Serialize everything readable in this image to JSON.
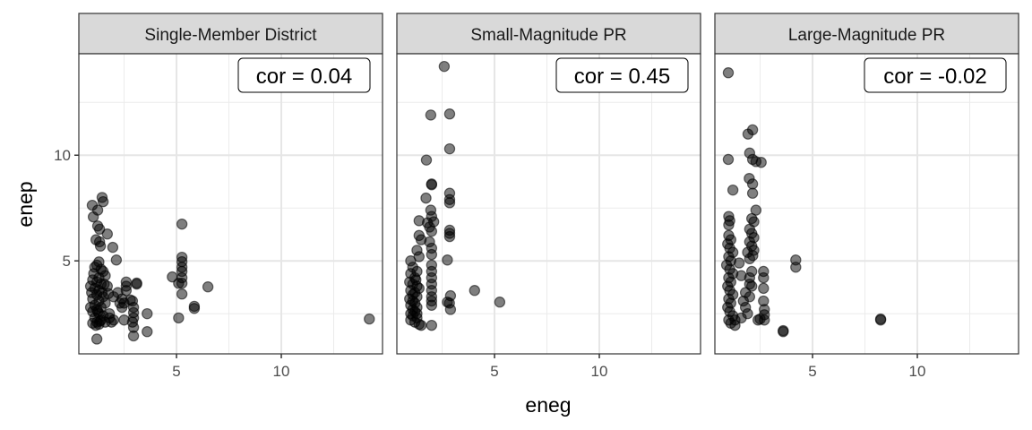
{
  "chart_data": {
    "type": "scatter",
    "xlabel": "eneg",
    "ylabel": "enep",
    "xlim": [
      0.34,
      14.83
    ],
    "ylim": [
      0.6,
      14.8
    ],
    "x_major_ticks": [
      5,
      10
    ],
    "x_minor_ticks": [
      2.5,
      7.5,
      12.5
    ],
    "y_major_ticks": [
      5,
      10
    ],
    "y_minor_ticks": [
      2.5,
      7.5,
      12.5
    ],
    "x_tick_labels": [
      "5",
      "10"
    ],
    "y_tick_labels": [
      "5",
      "10"
    ],
    "grid": true,
    "point_color": "#000000",
    "point_alpha": 0.5,
    "panels": [
      {
        "title": "Single-Member District",
        "annotation": "cor = 0.04",
        "points": [
          [
            1.45,
            8.0
          ],
          [
            1.5,
            7.8
          ],
          [
            0.98,
            7.63
          ],
          [
            1.24,
            7.4
          ],
          [
            1.03,
            7.08
          ],
          [
            1.24,
            6.65
          ],
          [
            1.33,
            6.5
          ],
          [
            1.7,
            6.27
          ],
          [
            1.16,
            6.0
          ],
          [
            1.33,
            5.9
          ],
          [
            1.37,
            5.7
          ],
          [
            1.96,
            5.64
          ],
          [
            2.13,
            5.04
          ],
          [
            1.3,
            4.95
          ],
          [
            1.2,
            4.8
          ],
          [
            1.1,
            4.7
          ],
          [
            1.4,
            4.6
          ],
          [
            1.5,
            4.5
          ],
          [
            1.6,
            4.3
          ],
          [
            1.3,
            4.2
          ],
          [
            1.0,
            4.1
          ],
          [
            1.2,
            4.0
          ],
          [
            1.4,
            3.9
          ],
          [
            1.7,
            3.8
          ],
          [
            1.1,
            3.7
          ],
          [
            1.3,
            3.6
          ],
          [
            0.95,
            3.5
          ],
          [
            1.2,
            3.4
          ],
          [
            1.5,
            3.3
          ],
          [
            1.0,
            3.2
          ],
          [
            1.3,
            3.1
          ],
          [
            1.6,
            3.0
          ],
          [
            1.1,
            2.9
          ],
          [
            1.4,
            2.8
          ],
          [
            1.2,
            2.7
          ],
          [
            1.0,
            2.6
          ],
          [
            1.3,
            2.5
          ],
          [
            1.5,
            2.4
          ],
          [
            1.1,
            2.3
          ],
          [
            1.4,
            2.2
          ],
          [
            1.2,
            2.1
          ],
          [
            1.0,
            2.05
          ],
          [
            1.3,
            2.0
          ],
          [
            1.6,
            2.1
          ],
          [
            1.9,
            2.1
          ],
          [
            2.0,
            2.2
          ],
          [
            1.8,
            2.3
          ],
          [
            1.15,
            1.95
          ],
          [
            1.35,
            2.15
          ],
          [
            1.25,
            2.6
          ],
          [
            1.45,
            3.5
          ],
          [
            1.55,
            3.9
          ],
          [
            1.05,
            4.4
          ],
          [
            1.75,
            3.45
          ],
          [
            2.3,
            3.0
          ],
          [
            2.4,
            3.2
          ],
          [
            2.5,
            3.0
          ],
          [
            2.4,
            2.8
          ],
          [
            2.6,
            3.6
          ],
          [
            2.6,
            3.8
          ],
          [
            2.6,
            4.0
          ],
          [
            3.1,
            3.9
          ],
          [
            3.1,
            3.95
          ],
          [
            2.8,
            3.15
          ],
          [
            2.9,
            3.1
          ],
          [
            2.95,
            2.8
          ],
          [
            2.95,
            2.55
          ],
          [
            2.95,
            2.3
          ],
          [
            2.9,
            2.1
          ],
          [
            2.95,
            1.85
          ],
          [
            2.95,
            1.45
          ],
          [
            2.5,
            2.2
          ],
          [
            3.6,
            2.5
          ],
          [
            3.6,
            1.65
          ],
          [
            1.2,
            1.3
          ],
          [
            2.2,
            3.5
          ],
          [
            2.0,
            3.3
          ],
          [
            1.8,
            2.5
          ],
          [
            0.9,
            3.8
          ],
          [
            0.9,
            2.8
          ],
          [
            5.26,
            6.74
          ],
          [
            5.26,
            5.17
          ],
          [
            5.26,
            4.96
          ],
          [
            5.26,
            4.7
          ],
          [
            5.26,
            4.5
          ],
          [
            5.26,
            4.2
          ],
          [
            5.26,
            3.94
          ],
          [
            5.26,
            3.43
          ],
          [
            4.8,
            4.24
          ],
          [
            5.1,
            3.94
          ],
          [
            6.5,
            3.77
          ],
          [
            5.85,
            2.85
          ],
          [
            5.85,
            2.75
          ],
          [
            5.1,
            2.3
          ],
          [
            14.2,
            2.25
          ]
        ]
      },
      {
        "title": "Small-Magnitude PR",
        "annotation": "cor = 0.45",
        "points": [
          [
            2.6,
            14.2
          ],
          [
            1.96,
            11.9
          ],
          [
            2.86,
            11.95
          ],
          [
            2.86,
            10.3
          ],
          [
            1.75,
            9.77
          ],
          [
            2.0,
            8.64
          ],
          [
            2.0,
            8.6
          ],
          [
            1.73,
            7.97
          ],
          [
            2.86,
            8.2
          ],
          [
            2.86,
            7.9
          ],
          [
            2.86,
            7.75
          ],
          [
            1.96,
            7.4
          ],
          [
            2.0,
            7.1
          ],
          [
            2.1,
            6.85
          ],
          [
            1.4,
            6.9
          ],
          [
            1.8,
            6.8
          ],
          [
            1.9,
            6.6
          ],
          [
            2.0,
            6.4
          ],
          [
            2.86,
            6.45
          ],
          [
            2.86,
            6.3
          ],
          [
            2.86,
            6.15
          ],
          [
            1.4,
            6.2
          ],
          [
            1.5,
            6.0
          ],
          [
            1.9,
            5.9
          ],
          [
            2.0,
            5.6
          ],
          [
            2.0,
            5.3
          ],
          [
            1.3,
            5.5
          ],
          [
            1.4,
            5.2
          ],
          [
            2.75,
            5.04
          ],
          [
            1.0,
            5.0
          ],
          [
            1.1,
            4.7
          ],
          [
            1.3,
            4.5
          ],
          [
            2.0,
            4.8
          ],
          [
            2.0,
            4.5
          ],
          [
            2.0,
            4.2
          ],
          [
            1.0,
            4.4
          ],
          [
            1.2,
            4.2
          ],
          [
            0.95,
            4.0
          ],
          [
            1.1,
            3.9
          ],
          [
            1.3,
            3.8
          ],
          [
            2.0,
            3.9
          ],
          [
            2.0,
            3.6
          ],
          [
            1.0,
            3.6
          ],
          [
            1.2,
            3.5
          ],
          [
            1.1,
            3.4
          ],
          [
            1.3,
            3.3
          ],
          [
            2.0,
            3.3
          ],
          [
            2.0,
            3.1
          ],
          [
            2.0,
            2.9
          ],
          [
            0.95,
            3.2
          ],
          [
            1.1,
            3.1
          ],
          [
            1.2,
            3.0
          ],
          [
            1.0,
            2.9
          ],
          [
            1.3,
            2.8
          ],
          [
            1.1,
            2.7
          ],
          [
            1.2,
            2.6
          ],
          [
            1.0,
            2.5
          ],
          [
            1.1,
            2.4
          ],
          [
            1.3,
            2.3
          ],
          [
            1.0,
            2.2
          ],
          [
            1.2,
            2.1
          ],
          [
            1.4,
            2.0
          ],
          [
            1.5,
            1.95
          ],
          [
            2.0,
            1.95
          ],
          [
            1.3,
            2.5
          ],
          [
            1.4,
            3.7
          ],
          [
            1.25,
            4.1
          ],
          [
            2.9,
            3.35
          ],
          [
            2.75,
            3.05
          ],
          [
            2.85,
            3.0
          ],
          [
            2.9,
            2.7
          ],
          [
            4.05,
            3.6
          ],
          [
            5.25,
            3.05
          ]
        ]
      },
      {
        "title": "Large-Magnitude PR",
        "annotation": "cor = -0.02",
        "points": [
          [
            0.98,
            13.9
          ],
          [
            2.14,
            11.2
          ],
          [
            1.92,
            11.0
          ],
          [
            2.0,
            10.1
          ],
          [
            0.98,
            9.8
          ],
          [
            2.14,
            9.8
          ],
          [
            2.3,
            9.7
          ],
          [
            2.55,
            9.66
          ],
          [
            1.98,
            8.9
          ],
          [
            2.14,
            8.64
          ],
          [
            2.14,
            8.2
          ],
          [
            1.2,
            8.35
          ],
          [
            2.3,
            7.4
          ],
          [
            1.0,
            7.1
          ],
          [
            1.05,
            6.9
          ],
          [
            1.0,
            6.7
          ],
          [
            2.1,
            7.0
          ],
          [
            2.2,
            6.85
          ],
          [
            2.0,
            6.5
          ],
          [
            2.1,
            6.3
          ],
          [
            2.2,
            6.1
          ],
          [
            2.0,
            5.9
          ],
          [
            2.1,
            5.7
          ],
          [
            2.2,
            5.5
          ],
          [
            1.9,
            5.4
          ],
          [
            2.15,
            5.25
          ],
          [
            2.0,
            5.1
          ],
          [
            1.0,
            6.2
          ],
          [
            1.1,
            6.0
          ],
          [
            0.95,
            5.8
          ],
          [
            1.05,
            5.6
          ],
          [
            1.2,
            5.4
          ],
          [
            1.0,
            5.2
          ],
          [
            1.1,
            5.0
          ],
          [
            0.9,
            4.8
          ],
          [
            1.05,
            4.6
          ],
          [
            1.2,
            4.4
          ],
          [
            1.0,
            4.2
          ],
          [
            1.1,
            4.0
          ],
          [
            0.95,
            3.8
          ],
          [
            1.05,
            3.6
          ],
          [
            1.2,
            3.4
          ],
          [
            1.0,
            3.2
          ],
          [
            1.1,
            3.0
          ],
          [
            0.95,
            2.8
          ],
          [
            1.05,
            2.6
          ],
          [
            1.2,
            2.4
          ],
          [
            1.0,
            2.2
          ],
          [
            1.1,
            2.05
          ],
          [
            1.3,
            2.2
          ],
          [
            1.5,
            4.9
          ],
          [
            1.6,
            4.3
          ],
          [
            1.8,
            3.5
          ],
          [
            1.7,
            3.1
          ],
          [
            1.9,
            2.5
          ],
          [
            1.6,
            2.3
          ],
          [
            2.0,
            4.2
          ],
          [
            2.1,
            4.5
          ],
          [
            2.0,
            3.9
          ],
          [
            2.1,
            3.8
          ],
          [
            2.0,
            3.3
          ],
          [
            1.8,
            2.8
          ],
          [
            2.66,
            4.5
          ],
          [
            2.66,
            4.2
          ],
          [
            2.66,
            3.7
          ],
          [
            2.66,
            3.1
          ],
          [
            2.7,
            2.7
          ],
          [
            2.7,
            2.45
          ],
          [
            2.5,
            2.25
          ],
          [
            2.4,
            2.2
          ],
          [
            2.7,
            2.2
          ],
          [
            4.2,
            5.04
          ],
          [
            4.2,
            4.7
          ],
          [
            3.6,
            1.65
          ],
          [
            3.6,
            1.7
          ],
          [
            8.25,
            2.2
          ],
          [
            8.25,
            2.25
          ],
          [
            1.3,
            1.95
          ]
        ]
      }
    ]
  }
}
